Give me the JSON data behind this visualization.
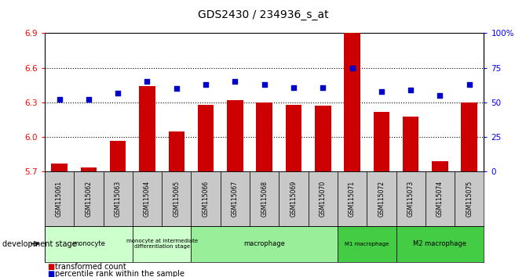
{
  "title": "GDS2430 / 234936_s_at",
  "samples": [
    "GSM115061",
    "GSM115062",
    "GSM115063",
    "GSM115064",
    "GSM115065",
    "GSM115066",
    "GSM115067",
    "GSM115068",
    "GSM115069",
    "GSM115070",
    "GSM115071",
    "GSM115072",
    "GSM115073",
    "GSM115074",
    "GSM115075"
  ],
  "bar_values": [
    5.77,
    5.74,
    5.97,
    6.44,
    6.05,
    6.28,
    6.32,
    6.3,
    6.28,
    6.27,
    6.9,
    6.22,
    6.18,
    5.79,
    6.3
  ],
  "dot_values": [
    52,
    52,
    57,
    65,
    60,
    63,
    65,
    63,
    61,
    61,
    75,
    58,
    59,
    55,
    63
  ],
  "bar_color": "#cc0000",
  "dot_color": "#0000cc",
  "ymin": 5.7,
  "ymax": 6.9,
  "yticks": [
    5.7,
    6.0,
    6.3,
    6.6,
    6.9
  ],
  "right_yticks": [
    0,
    25,
    50,
    75,
    100
  ],
  "right_yticklabels": [
    "0",
    "25",
    "50",
    "75",
    "100%"
  ],
  "stage_groups": [
    {
      "label": "monocyte",
      "start": 0,
      "end": 3,
      "color": "#ccffcc"
    },
    {
      "label": "monocyte at intermediate\ndifferentiation stage",
      "start": 3,
      "end": 5,
      "color": "#ccffcc"
    },
    {
      "label": "macrophage",
      "start": 5,
      "end": 10,
      "color": "#99ee99"
    },
    {
      "label": "M1 macrophage",
      "start": 10,
      "end": 12,
      "color": "#44cc44"
    },
    {
      "label": "M2 macrophage",
      "start": 12,
      "end": 15,
      "color": "#44cc44"
    }
  ],
  "legend_bar_label": "transformed count",
  "legend_dot_label": "percentile rank within the sample",
  "dev_stage_label": "development stage",
  "sample_box_color": "#c8c8c8"
}
